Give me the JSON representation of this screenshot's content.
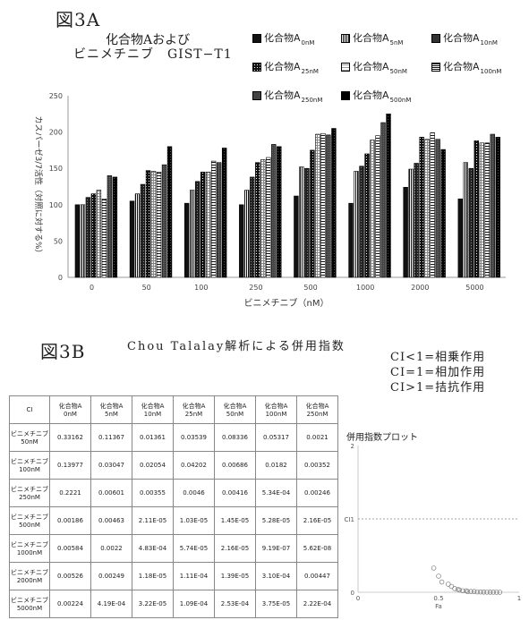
{
  "fig3a_label": "図3A",
  "fig3b_label": "図3B",
  "title_a_line1": "化合物Aおよび",
  "title_a_line2": "ビニメチニブ　GIST−T1",
  "title_b": "Chou Talalay解析による併用指数",
  "ci_notes": [
    "CI<1=相乗作用",
    "CI=1=相加作用",
    "CI>1=拮抗作用"
  ],
  "colors": {
    "bar_fill": "#111111",
    "bar_hatch": "#ffffff",
    "axis": "#999999"
  },
  "legend": [
    {
      "name": "化合物A",
      "dose": "0nM",
      "pattern": "solid-black"
    },
    {
      "name": "化合物A",
      "dose": "5nM",
      "pattern": "white-vertical-lines"
    },
    {
      "name": "化合物A",
      "dose": "10nM",
      "pattern": "dark-dotted"
    },
    {
      "name": "化合物A",
      "dose": "25nM",
      "pattern": "black-white-dots"
    },
    {
      "name": "化合物A",
      "dose": "50nM",
      "pattern": "gray-grid"
    },
    {
      "name": "化合物A",
      "dose": "100nM",
      "pattern": "white-horizontal-lines"
    },
    {
      "name": "化合物A",
      "dose": "250nM",
      "pattern": "dark-gray"
    },
    {
      "name": "化合物A",
      "dose": "500nM",
      "pattern": "black-dotted"
    }
  ],
  "chart_data": [
    {
      "type": "bar",
      "title": "化合物Aおよび ビニメチニブ GIST−T1",
      "xlabel": "ビニメチニブ（nM）",
      "ylabel": "カスパーゼ3/7活性（対照に対する%）",
      "ylim": [
        0,
        250
      ],
      "yticks": [
        0,
        50,
        100,
        150,
        200,
        250
      ],
      "categories": [
        "0",
        "50",
        "100",
        "250",
        "500",
        "1000",
        "2000",
        "5000"
      ],
      "grid": false,
      "legend_position": "top-right",
      "series": [
        {
          "name": "化合物A 0nM",
          "values": [
            100,
            105,
            102,
            100,
            112,
            102,
            124,
            108
          ]
        },
        {
          "name": "化合物A 5nM",
          "values": [
            100,
            115,
            120,
            120,
            152,
            146,
            149,
            158
          ]
        },
        {
          "name": "化合物A 10nM",
          "values": [
            110,
            128,
            132,
            138,
            150,
            153,
            157,
            150
          ]
        },
        {
          "name": "化合物A 25nM",
          "values": [
            115,
            147,
            145,
            158,
            175,
            170,
            193,
            188
          ]
        },
        {
          "name": "化合物A 50nM",
          "values": [
            120,
            146,
            145,
            162,
            197,
            189,
            190,
            185
          ]
        },
        {
          "name": "化合物A 100nM",
          "values": [
            108,
            145,
            160,
            165,
            198,
            195,
            199,
            185
          ]
        },
        {
          "name": "化合物A 250nM",
          "values": [
            140,
            155,
            158,
            183,
            196,
            213,
            190,
            197
          ]
        },
        {
          "name": "化合物A 500nM",
          "values": [
            138,
            180,
            178,
            180,
            205,
            225,
            176,
            193
          ]
        }
      ]
    },
    {
      "type": "table",
      "corner": "CI",
      "columns": [
        "化合物A 0nM",
        "化合物A 5nM",
        "化合物A 10nM",
        "化合物A 25nM",
        "化合物A 50nM",
        "化合物A 100nM",
        "化合物A 250nM"
      ],
      "rows": [
        {
          "label": "ビニメチニブ 50nM",
          "values": [
            "0.33162",
            "0.11367",
            "0.01361",
            "0.03539",
            "0.08336",
            "0.05317",
            "0.0021"
          ]
        },
        {
          "label": "ビニメチニブ 100nM",
          "values": [
            "0.13977",
            "0.03047",
            "0.02054",
            "0.04202",
            "0.00686",
            "0.0182",
            "0.00352"
          ]
        },
        {
          "label": "ビニメチニブ 250nM",
          "values": [
            "0.2221",
            "0.00601",
            "0.00355",
            "0.0046",
            "0.00416",
            "5.34E-04",
            "0.00246"
          ]
        },
        {
          "label": "ビニメチニブ 500nM",
          "values": [
            "0.00186",
            "0.00463",
            "2.11E-05",
            "1.03E-05",
            "1.45E-05",
            "5.28E-05",
            "2.16E-05"
          ]
        },
        {
          "label": "ビニメチニブ 1000nM",
          "values": [
            "0.00584",
            "0.0022",
            "4.83E-04",
            "5.74E-05",
            "2.16E-05",
            "9.19E-07",
            "5.62E-08"
          ]
        },
        {
          "label": "ビニメチニブ 2000nM",
          "values": [
            "0.00526",
            "0.00249",
            "1.18E-05",
            "1.11E-04",
            "1.39E-05",
            "3.10E-04",
            "0.00447"
          ]
        },
        {
          "label": "ビニメチニブ 5000nM",
          "values": [
            "0.00224",
            "4.19E-04",
            "3.22E-05",
            "1.09E-04",
            "2.53E-04",
            "3.75E-05",
            "2.22E-04"
          ]
        }
      ]
    },
    {
      "type": "scatter",
      "title": "併用指数プロット",
      "xlabel": "Fa",
      "ylabel": "CI",
      "xlim": [
        0,
        1
      ],
      "ylim": [
        0,
        2
      ],
      "xticks": [
        0,
        0.5,
        1
      ],
      "yticks": [
        0,
        1,
        2
      ],
      "reference_line_y": 1,
      "points": [
        {
          "x": 0.47,
          "y": 0.33
        },
        {
          "x": 0.5,
          "y": 0.22
        },
        {
          "x": 0.52,
          "y": 0.14
        },
        {
          "x": 0.56,
          "y": 0.11
        },
        {
          "x": 0.58,
          "y": 0.08
        },
        {
          "x": 0.6,
          "y": 0.05
        },
        {
          "x": 0.62,
          "y": 0.04
        },
        {
          "x": 0.63,
          "y": 0.03
        },
        {
          "x": 0.65,
          "y": 0.02
        },
        {
          "x": 0.67,
          "y": 0.02
        },
        {
          "x": 0.68,
          "y": 0.01
        },
        {
          "x": 0.7,
          "y": 0.01
        },
        {
          "x": 0.72,
          "y": 0.01
        },
        {
          "x": 0.74,
          "y": 0.005
        },
        {
          "x": 0.76,
          "y": 0.004
        },
        {
          "x": 0.78,
          "y": 0.003
        },
        {
          "x": 0.8,
          "y": 0.002
        },
        {
          "x": 0.82,
          "y": 0.001
        },
        {
          "x": 0.84,
          "y": 0.001
        },
        {
          "x": 0.86,
          "y": 0.0005
        },
        {
          "x": 0.88,
          "y": 0.0002
        }
      ]
    }
  ]
}
